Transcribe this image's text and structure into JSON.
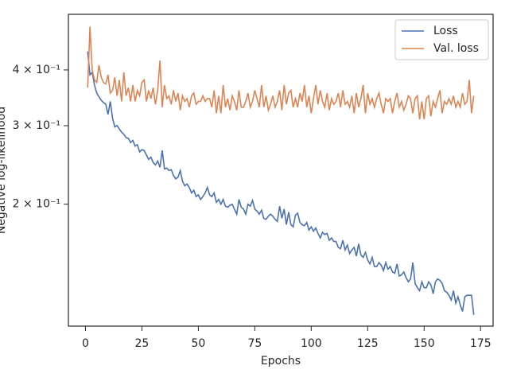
{
  "chart_data": {
    "type": "line",
    "x_label": "Epochs",
    "y_label": "Negative log-likelihood",
    "log_y": true,
    "legend": "upper right",
    "x": [
      1,
      2,
      3,
      4,
      5,
      6,
      7,
      8,
      9,
      10,
      11,
      12,
      13,
      14,
      15,
      16,
      17,
      18,
      19,
      20,
      21,
      22,
      23,
      24,
      25,
      26,
      27,
      28,
      29,
      30,
      31,
      32,
      33,
      34,
      35,
      36,
      37,
      38,
      39,
      40,
      41,
      42,
      43,
      44,
      45,
      46,
      47,
      48,
      49,
      50,
      51,
      52,
      53,
      54,
      55,
      56,
      57,
      58,
      59,
      60,
      61,
      62,
      63,
      64,
      65,
      66,
      67,
      68,
      69,
      70,
      71,
      72,
      73,
      74,
      75,
      76,
      77,
      78,
      79,
      80,
      81,
      82,
      83,
      84,
      85,
      86,
      87,
      88,
      89,
      90,
      91,
      92,
      93,
      94,
      95,
      96,
      97,
      98,
      99,
      100,
      101,
      102,
      103,
      104,
      105,
      106,
      107,
      108,
      109,
      110,
      111,
      112,
      113,
      114,
      115,
      116,
      117,
      118,
      119,
      120,
      121,
      122,
      123,
      124,
      125,
      126,
      127,
      128,
      129,
      130,
      131,
      132,
      133,
      134,
      135,
      136,
      137,
      138,
      139,
      140,
      141,
      142,
      143,
      144,
      145,
      146,
      147,
      148,
      149,
      150,
      151,
      152,
      153,
      154,
      155,
      156,
      157,
      158,
      159,
      160,
      161,
      162,
      163,
      164,
      165,
      166,
      167,
      168,
      169,
      170,
      171,
      172
    ],
    "series": [
      {
        "name": "Loss",
        "color": "#4c72b0",
        "values": [
          0.44,
          0.39,
          0.395,
          0.37,
          0.355,
          0.348,
          0.342,
          0.338,
          0.335,
          0.318,
          0.34,
          0.312,
          0.298,
          0.3,
          0.295,
          0.29,
          0.287,
          0.282,
          0.281,
          0.275,
          0.278,
          0.27,
          0.272,
          0.262,
          0.265,
          0.264,
          0.258,
          0.252,
          0.255,
          0.248,
          0.245,
          0.25,
          0.242,
          0.264,
          0.24,
          0.241,
          0.238,
          0.239,
          0.232,
          0.228,
          0.23,
          0.238,
          0.225,
          0.22,
          0.222,
          0.218,
          0.212,
          0.215,
          0.208,
          0.21,
          0.205,
          0.208,
          0.212,
          0.218,
          0.21,
          0.208,
          0.212,
          0.202,
          0.205,
          0.2,
          0.205,
          0.198,
          0.197,
          0.199,
          0.2,
          0.195,
          0.19,
          0.205,
          0.197,
          0.195,
          0.19,
          0.2,
          0.198,
          0.204,
          0.195,
          0.193,
          0.19,
          0.194,
          0.186,
          0.185,
          0.188,
          0.19,
          0.188,
          0.185,
          0.183,
          0.198,
          0.186,
          0.195,
          0.18,
          0.192,
          0.18,
          0.178,
          0.189,
          0.191,
          0.182,
          0.18,
          0.179,
          0.182,
          0.175,
          0.178,
          0.174,
          0.177,
          0.172,
          0.168,
          0.173,
          0.171,
          0.172,
          0.166,
          0.168,
          0.165,
          0.165,
          0.16,
          0.159,
          0.166,
          0.158,
          0.162,
          0.155,
          0.158,
          0.16,
          0.153,
          0.163,
          0.154,
          0.152,
          0.156,
          0.15,
          0.147,
          0.152,
          0.145,
          0.145,
          0.148,
          0.146,
          0.142,
          0.148,
          0.143,
          0.145,
          0.141,
          0.14,
          0.147,
          0.138,
          0.139,
          0.141,
          0.137,
          0.134,
          0.136,
          0.148,
          0.133,
          0.13,
          0.128,
          0.134,
          0.13,
          0.13,
          0.134,
          0.132,
          0.126,
          0.134,
          0.136,
          0.135,
          0.133,
          0.128,
          0.127,
          0.125,
          0.122,
          0.128,
          0.12,
          0.124,
          0.119,
          0.115,
          0.124,
          0.125,
          0.125,
          0.125,
          0.113
        ]
      },
      {
        "name": "Val. loss",
        "color": "#dd8452",
        "values": [
          0.365,
          0.5,
          0.4,
          0.38,
          0.375,
          0.41,
          0.385,
          0.375,
          0.372,
          0.39,
          0.355,
          0.36,
          0.385,
          0.35,
          0.38,
          0.34,
          0.395,
          0.35,
          0.365,
          0.34,
          0.37,
          0.34,
          0.36,
          0.35,
          0.375,
          0.38,
          0.34,
          0.36,
          0.345,
          0.365,
          0.335,
          0.36,
          0.42,
          0.33,
          0.37,
          0.345,
          0.35,
          0.335,
          0.36,
          0.34,
          0.355,
          0.325,
          0.35,
          0.34,
          0.345,
          0.33,
          0.35,
          0.355,
          0.335,
          0.34,
          0.34,
          0.35,
          0.34,
          0.345,
          0.345,
          0.33,
          0.36,
          0.32,
          0.35,
          0.32,
          0.37,
          0.33,
          0.345,
          0.325,
          0.35,
          0.34,
          0.325,
          0.36,
          0.33,
          0.33,
          0.34,
          0.355,
          0.33,
          0.34,
          0.36,
          0.345,
          0.33,
          0.37,
          0.33,
          0.35,
          0.325,
          0.335,
          0.35,
          0.33,
          0.34,
          0.36,
          0.325,
          0.37,
          0.335,
          0.355,
          0.36,
          0.33,
          0.345,
          0.33,
          0.355,
          0.34,
          0.37,
          0.33,
          0.35,
          0.32,
          0.345,
          0.37,
          0.335,
          0.36,
          0.34,
          0.33,
          0.355,
          0.325,
          0.345,
          0.335,
          0.34,
          0.355,
          0.33,
          0.36,
          0.335,
          0.34,
          0.33,
          0.35,
          0.32,
          0.355,
          0.33,
          0.345,
          0.37,
          0.32,
          0.355,
          0.335,
          0.345,
          0.33,
          0.345,
          0.355,
          0.335,
          0.32,
          0.345,
          0.34,
          0.345,
          0.32,
          0.34,
          0.355,
          0.33,
          0.34,
          0.325,
          0.335,
          0.35,
          0.345,
          0.32,
          0.345,
          0.35,
          0.31,
          0.34,
          0.31,
          0.345,
          0.35,
          0.315,
          0.34,
          0.33,
          0.345,
          0.36,
          0.32,
          0.34,
          0.335,
          0.345,
          0.335,
          0.35,
          0.33,
          0.34,
          0.33,
          0.355,
          0.335,
          0.34,
          0.38,
          0.32,
          0.35
        ]
      }
    ],
    "xlim": [
      -7.55,
      180.55
    ],
    "xticks": [
      0,
      25,
      50,
      75,
      100,
      125,
      150,
      175
    ],
    "ylim": [
      0.1066,
      0.533
    ],
    "yticks": [
      {
        "value": 0.2,
        "label": "2 × 10⁻¹"
      },
      {
        "value": 0.3,
        "label": "3 × 10⁻¹"
      },
      {
        "value": 0.4,
        "label": "4 × 10⁻¹"
      }
    ]
  }
}
